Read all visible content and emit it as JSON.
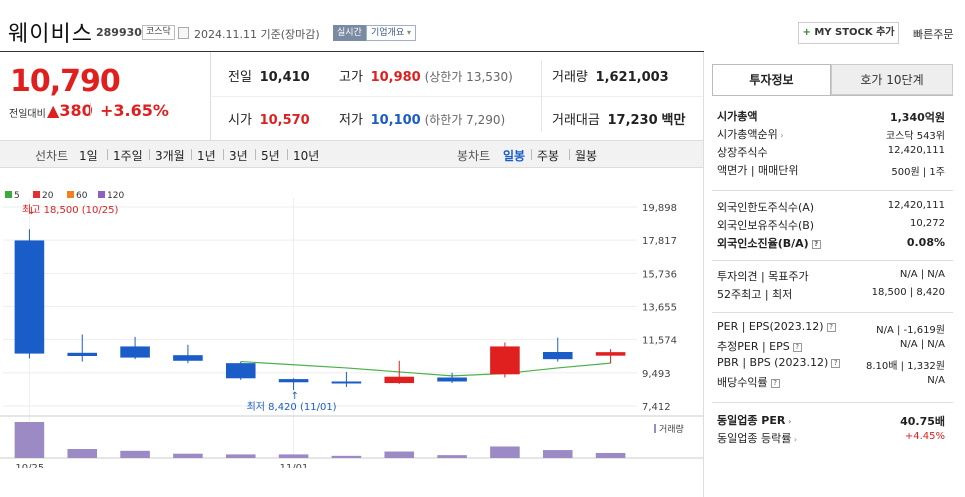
{
  "header": {
    "name": "웨이비스",
    "code": "289930",
    "market": "코스닥",
    "date": "2024.11.11",
    "basis": "기준(장마감)",
    "live_label": "실시간",
    "info_label": "기업개요",
    "mystock_label": "MY STOCK 추가",
    "quick_order": "빠른주문"
  },
  "quote": {
    "price": "10,790",
    "change_label": "전일대비",
    "change": "380",
    "change_pct": "+3.65%"
  },
  "stats": {
    "prev_label": "전일",
    "prev": "10,410",
    "high_label": "고가",
    "high": "10,980",
    "upper_label": "(상한가 13,530)",
    "volume_label": "거래량",
    "volume": "1,621,003",
    "open_label": "시가",
    "open": "10,570",
    "low_label": "저가",
    "low": "10,100",
    "lower_label": "(하한가 7,290)",
    "amount_label": "거래대금",
    "amount": "17,230",
    "amount_unit": "백만"
  },
  "toolbar": {
    "left": [
      "선차트",
      "1일",
      "1주일",
      "3개월",
      "1년",
      "3년",
      "5년",
      "10년"
    ],
    "right": [
      "봉차트",
      "일봉",
      "주봉",
      "월봉"
    ],
    "active": "일봉"
  },
  "legend": [
    {
      "label": "5",
      "color": "#3aaa3a"
    },
    {
      "label": "20",
      "color": "#e03030"
    },
    {
      "label": "60",
      "color": "#f08020"
    },
    {
      "label": "120",
      "color": "#9060c0"
    }
  ],
  "chart_data": {
    "type": "candlestick",
    "y_ticks": [
      "19,898",
      "17,817",
      "15,736",
      "13,655",
      "11,574",
      "9,493",
      "7,412"
    ],
    "ylim": [
      7412,
      19898
    ],
    "x_labels": [
      "10/25",
      "11/01"
    ],
    "high_annotation": "최고 18,500 (10/25)",
    "low_annotation": "최저 8,420 (11/01)",
    "volume_label": "거래량",
    "candles": [
      {
        "date": "10/25",
        "open": 17800,
        "close": 10700,
        "high": 18500,
        "low": 10400
      },
      {
        "date": "10/28",
        "open": 10750,
        "close": 10550,
        "high": 11900,
        "low": 10200
      },
      {
        "date": "10/29",
        "open": 11150,
        "close": 10450,
        "high": 11750,
        "low": 10350
      },
      {
        "date": "10/30",
        "open": 10600,
        "close": 10250,
        "high": 11250,
        "low": 10100
      },
      {
        "date": "10/31",
        "open": 10100,
        "close": 9150,
        "high": 10200,
        "low": 9050
      },
      {
        "date": "11/01",
        "open": 9100,
        "close": 8900,
        "high": 9150,
        "low": 8420
      },
      {
        "date": "11/04",
        "open": 8950,
        "close": 8900,
        "high": 9550,
        "low": 8600
      },
      {
        "date": "11/05",
        "open": 8850,
        "close": 9250,
        "high": 10250,
        "low": 8800
      },
      {
        "date": "11/06",
        "open": 9200,
        "close": 8950,
        "high": 9500,
        "low": 8850
      },
      {
        "date": "11/07",
        "open": 9400,
        "close": 11150,
        "high": 11400,
        "low": 9200
      },
      {
        "date": "11/08",
        "open": 10800,
        "close": 10350,
        "high": 11700,
        "low": 10200
      },
      {
        "date": "11/11",
        "open": 10570,
        "close": 10790,
        "high": 10980,
        "low": 10100
      }
    ],
    "ma5": [
      null,
      null,
      null,
      null,
      10200,
      10000,
      9800,
      9550,
      9300,
      9450,
      9800,
      10100
    ],
    "volume": [
      100,
      25,
      20,
      12,
      10,
      10,
      6,
      18,
      8,
      32,
      22,
      14
    ]
  },
  "right_panel": {
    "tab_active": "투자정보",
    "tab_other": "호가 10단계",
    "rows1": [
      {
        "label": "시가총액",
        "value": "1,340억원",
        "bold": true
      },
      {
        "label": "시가총액순위",
        "value": "코스닥 543위",
        "caret": true
      },
      {
        "label": "상장주식수",
        "value": "12,420,111"
      },
      {
        "label": "액면가 | 매매단위",
        "value": "500원 | 1주"
      }
    ],
    "rows2": [
      {
        "label": "외국인한도주식수(A)",
        "value": "12,420,111"
      },
      {
        "label": "외국인보유주식수(B)",
        "value": "10,272"
      },
      {
        "label": "외국인소진율(B/A)",
        "value": "0.08%",
        "bold": true,
        "chip": true
      }
    ],
    "rows3": [
      {
        "label": "투자의견 | 목표주가",
        "value": "N/A | N/A"
      },
      {
        "label": "52주최고 | 최저",
        "value": "18,500 | 8,420"
      }
    ],
    "rows4": [
      {
        "label": "PER | EPS(2023.12)",
        "value": "N/A | -1,619원",
        "chip": true
      },
      {
        "label": "추정PER | EPS",
        "value": "N/A | N/A",
        "chip": true
      },
      {
        "label": "PBR | BPS (2023.12)",
        "value": "8.10배 | 1,332원",
        "chip": true
      },
      {
        "label": "배당수익률",
        "value": "N/A",
        "chip": true
      }
    ],
    "rows5": [
      {
        "label": "동일업종 PER",
        "value": "40.75배",
        "bold": true,
        "caret": true
      },
      {
        "label": "동일업종 등락률",
        "value": "+4.45%",
        "red": true,
        "caret": true
      }
    ]
  }
}
